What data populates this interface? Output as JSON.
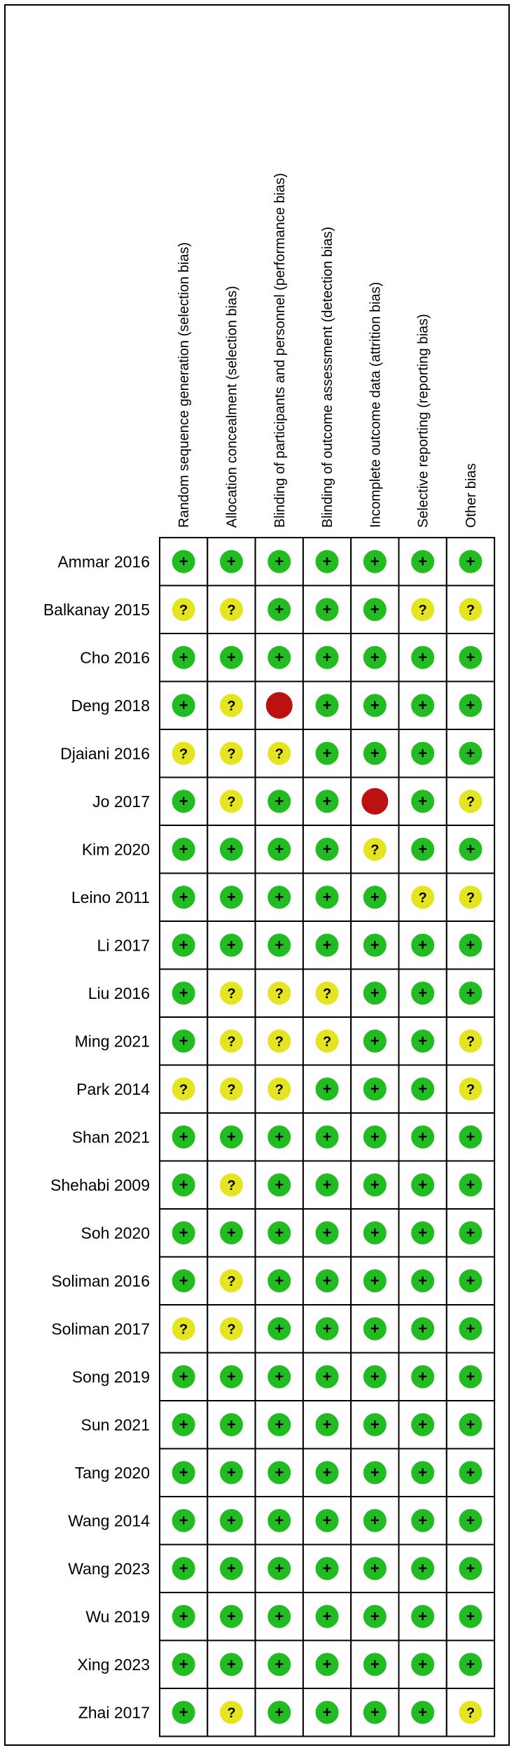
{
  "chart_data": {
    "type": "table",
    "title": "",
    "domains": [
      "Random sequence generation (selection bias)",
      "Allocation concealment (selection bias)",
      "Blinding of participants and personnel (performance bias)",
      "Blinding of outcome assessment (detection bias)",
      "Incomplete outcome data (attrition bias)",
      "Selective reporting (reporting bias)",
      "Other bias"
    ],
    "studies": [
      "Ammar 2016",
      "Balkanay 2015",
      "Cho 2016",
      "Deng 2018",
      "Djaiani 2016",
      "Jo 2017",
      "Kim 2020",
      "Leino 2011",
      "Li 2017",
      "Liu 2016",
      "Ming 2021",
      "Park 2014",
      "Shan 2021",
      "Shehabi 2009",
      "Soh 2020",
      "Soliman 2016",
      "Soliman 2017",
      "Song 2019",
      "Sun 2021",
      "Tang 2020",
      "Wang 2014",
      "Wang 2023",
      "Wu 2019",
      "Xing 2023",
      "Zhai 2017"
    ],
    "judgements": [
      [
        "low",
        "low",
        "low",
        "low",
        "low",
        "low",
        "low"
      ],
      [
        "unclear",
        "unclear",
        "low",
        "low",
        "low",
        "unclear",
        "unclear"
      ],
      [
        "low",
        "low",
        "low",
        "low",
        "low",
        "low",
        "low"
      ],
      [
        "low",
        "unclear",
        "high",
        "low",
        "low",
        "low",
        "low"
      ],
      [
        "unclear",
        "unclear",
        "unclear",
        "low",
        "low",
        "low",
        "low"
      ],
      [
        "low",
        "unclear",
        "low",
        "low",
        "high",
        "low",
        "unclear"
      ],
      [
        "low",
        "low",
        "low",
        "low",
        "unclear",
        "low",
        "low"
      ],
      [
        "low",
        "low",
        "low",
        "low",
        "low",
        "unclear",
        "unclear"
      ],
      [
        "low",
        "low",
        "low",
        "low",
        "low",
        "low",
        "low"
      ],
      [
        "low",
        "unclear",
        "unclear",
        "unclear",
        "low",
        "low",
        "low"
      ],
      [
        "low",
        "unclear",
        "unclear",
        "unclear",
        "low",
        "low",
        "unclear"
      ],
      [
        "unclear",
        "unclear",
        "unclear",
        "low",
        "low",
        "low",
        "unclear"
      ],
      [
        "low",
        "low",
        "low",
        "low",
        "low",
        "low",
        "low"
      ],
      [
        "low",
        "unclear",
        "low",
        "low",
        "low",
        "low",
        "low"
      ],
      [
        "low",
        "low",
        "low",
        "low",
        "low",
        "low",
        "low"
      ],
      [
        "low",
        "unclear",
        "low",
        "low",
        "low",
        "low",
        "low"
      ],
      [
        "unclear",
        "unclear",
        "low",
        "low",
        "low",
        "low",
        "low"
      ],
      [
        "low",
        "low",
        "low",
        "low",
        "low",
        "low",
        "low"
      ],
      [
        "low",
        "low",
        "low",
        "low",
        "low",
        "low",
        "low"
      ],
      [
        "low",
        "low",
        "low",
        "low",
        "low",
        "low",
        "low"
      ],
      [
        "low",
        "low",
        "low",
        "low",
        "low",
        "low",
        "low"
      ],
      [
        "low",
        "low",
        "low",
        "low",
        "low",
        "low",
        "low"
      ],
      [
        "low",
        "low",
        "low",
        "low",
        "low",
        "low",
        "low"
      ],
      [
        "low",
        "low",
        "low",
        "low",
        "low",
        "low",
        "low"
      ],
      [
        "low",
        "unclear",
        "low",
        "low",
        "low",
        "low",
        "unclear"
      ]
    ],
    "symbols": {
      "low": "+",
      "unclear": "?",
      "high": ""
    },
    "colors": {
      "low": "#22bb22",
      "unclear": "#e4e420",
      "high": "#bb1111",
      "grid": "#000000"
    }
  }
}
